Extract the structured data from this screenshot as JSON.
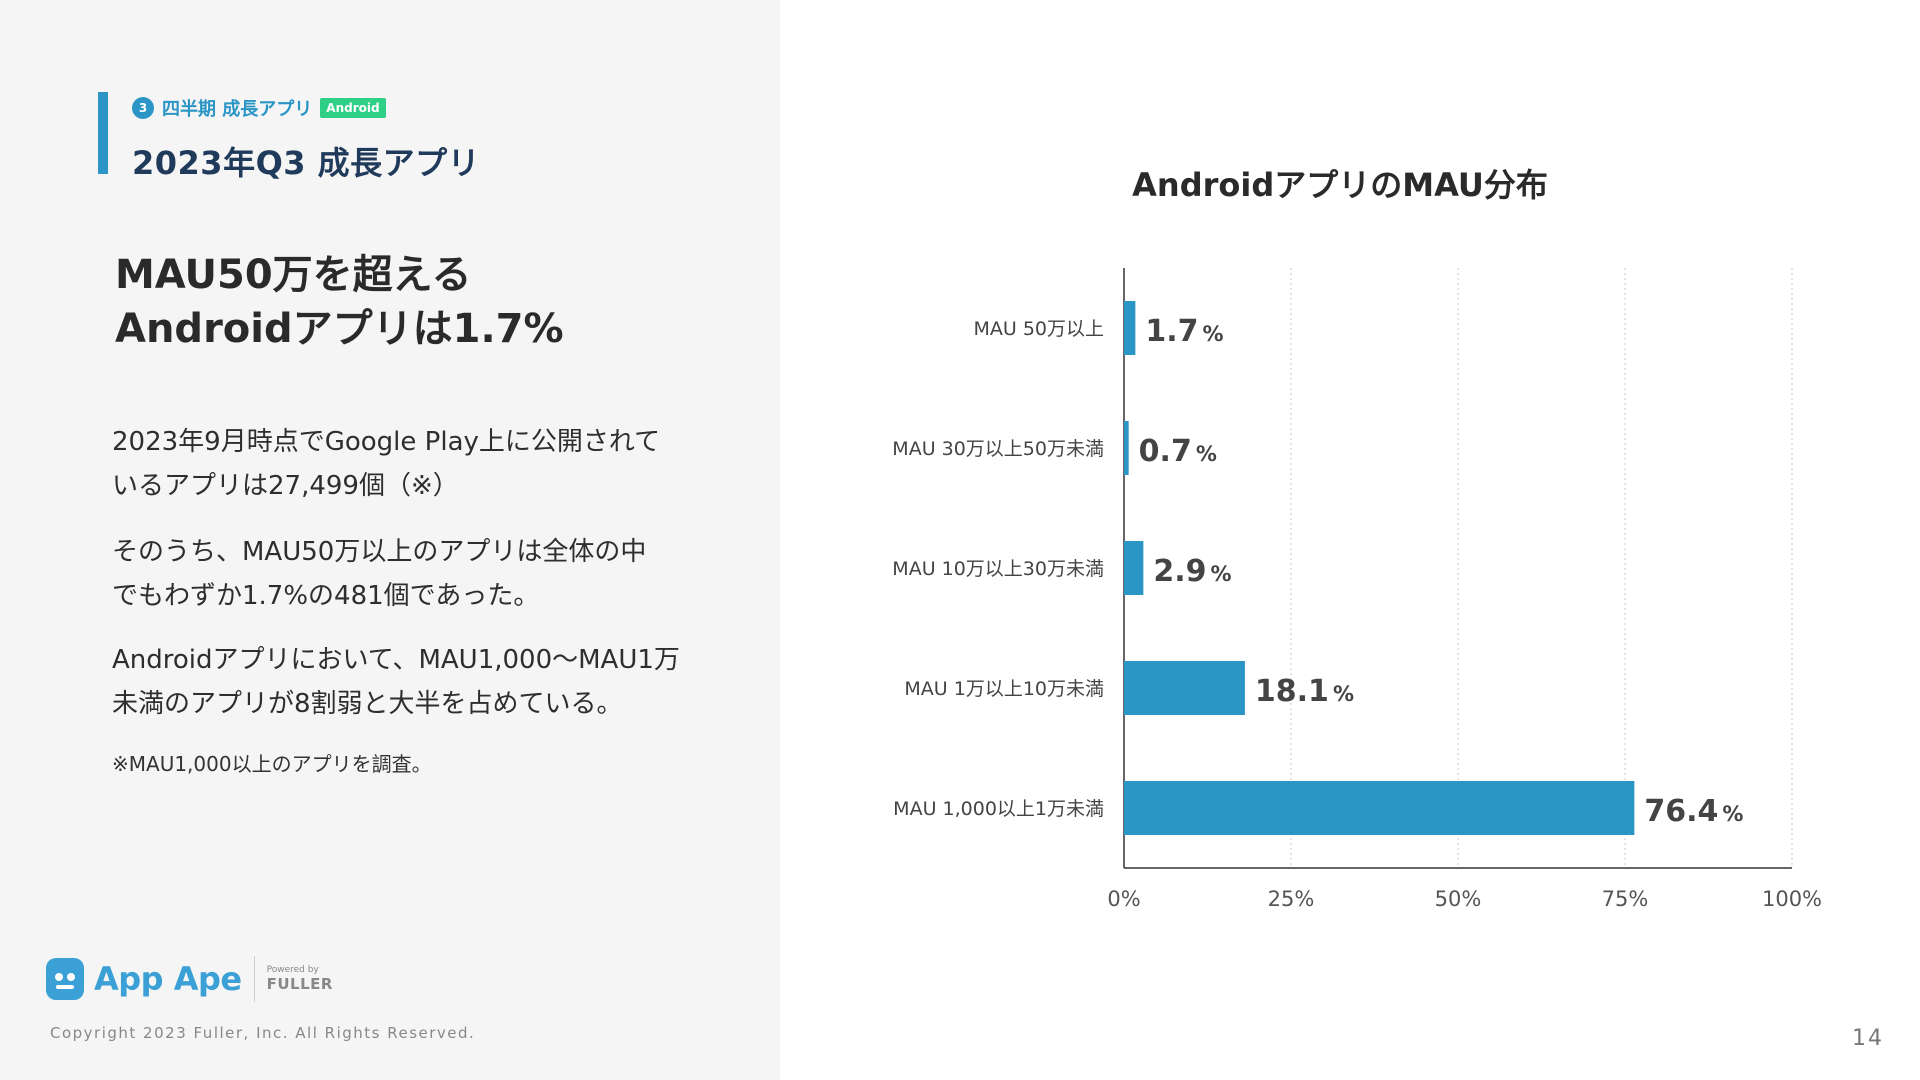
{
  "section": {
    "number": "3",
    "label": "四半期 成長アプリ",
    "badge": "Android"
  },
  "title": "2023年Q3 成長アプリ",
  "headline": {
    "line1": "MAU50万を超える",
    "line2": "Androidアプリは1.7%"
  },
  "paragraphs": [
    {
      "line1": "2023年9月時点でGoogle Play上に公開されて",
      "line2": "いるアプリは27,499個（※）"
    },
    {
      "line1": "そのうち、MAU50万以上のアプリは全体の中",
      "line2": "でもわずか1.7%の481個であった。"
    },
    {
      "line1": "Androidアプリにおいて、MAU1,000〜MAU1万",
      "line2": "未満のアプリが8割弱と大半を占めている。"
    }
  ],
  "note": "※MAU1,000以上のアプリを調査。",
  "logo": {
    "name": "App Ape",
    "powered_by": "Powered by",
    "company": "FULLER"
  },
  "copyright": "Copyright 2023 Fuller, Inc. All Rights Reserved.",
  "page_number": "14",
  "colors": {
    "accent": "#2b95c5",
    "badge": "#2fcf87",
    "bar": "#2b95c5"
  },
  "chart_data": {
    "type": "bar",
    "orientation": "horizontal",
    "title": "AndroidアプリのMAU分布",
    "categories": [
      "MAU 50万以上",
      "MAU 30万以上50万未満",
      "MAU 10万以上30万未満",
      "MAU 1万以上10万未満",
      "MAU 1,000以上1万未満"
    ],
    "values": [
      1.7,
      0.7,
      2.9,
      18.1,
      76.4
    ],
    "value_labels": [
      "1.7",
      "0.7",
      "2.9",
      "18.1",
      "76.4"
    ],
    "value_unit": "%",
    "xlim": [
      0,
      100
    ],
    "x_ticks": [
      0,
      25,
      50,
      75,
      100
    ],
    "x_tick_labels": [
      "0%",
      "25%",
      "50%",
      "75%",
      "100%"
    ],
    "grid": "vertical-dotted",
    "xlabel": "",
    "ylabel": ""
  }
}
